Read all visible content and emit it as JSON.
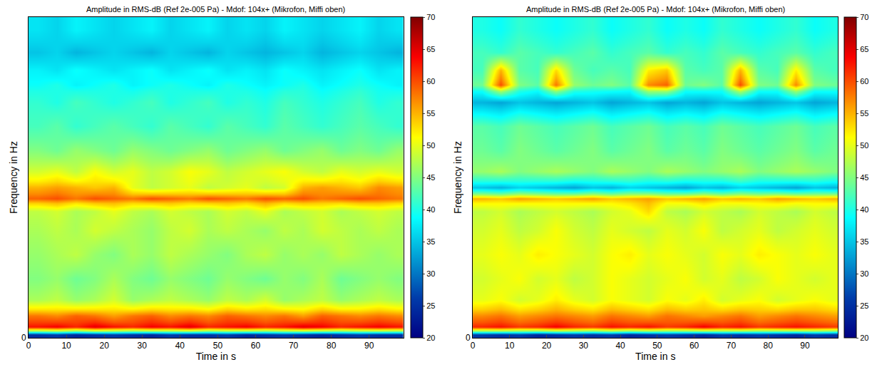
{
  "chart_data": [
    {
      "type": "heatmap",
      "title": "Amplitude in RMS-dB (Ref 2e-005 Pa) - Mdof: 104x+ (Mikrofon, Miffi oben)",
      "x_label": "Time in s",
      "y_label": "Frequency in Hz",
      "color": "Jet",
      "xlim": [
        0,
        99
      ],
      "xticks": [
        0,
        10,
        20,
        30,
        40,
        50,
        60,
        70,
        80,
        90
      ],
      "ylim": [
        0,
        100
      ],
      "yticks": [
        0
      ],
      "zlim": [
        20,
        70
      ],
      "zticks": [
        20,
        25,
        30,
        35,
        40,
        45,
        50,
        55,
        60,
        65,
        70
      ],
      "x_edges": [
        0,
        5,
        10,
        15,
        20,
        25,
        30,
        35,
        40,
        45,
        50,
        55,
        60,
        65,
        70,
        75,
        80,
        85,
        90,
        95,
        100
      ],
      "y_edges": [
        0,
        2,
        5,
        9,
        15,
        22,
        30,
        37,
        42,
        45,
        49,
        55,
        62,
        70,
        77,
        81,
        86,
        92,
        100
      ],
      "z": [
        [
          25,
          26,
          24,
          25,
          26,
          25,
          24,
          26,
          25,
          25,
          26,
          24,
          25,
          26,
          25,
          24,
          25,
          26,
          25,
          25
        ],
        [
          63,
          64,
          62,
          65,
          63,
          62,
          64,
          63,
          65,
          62,
          63,
          64,
          62,
          63,
          65,
          64,
          62,
          63,
          64,
          63
        ],
        [
          58,
          57,
          59,
          58,
          56,
          58,
          59,
          57,
          58,
          57,
          59,
          58,
          57,
          58,
          56,
          59,
          58,
          57,
          58,
          57
        ],
        [
          47,
          48,
          46,
          47,
          49,
          46,
          47,
          48,
          47,
          46,
          48,
          47,
          49,
          46,
          47,
          48,
          46,
          47,
          48,
          47
        ],
        [
          45,
          46,
          44,
          45,
          47,
          45,
          44,
          46,
          45,
          44,
          46,
          45,
          44,
          46,
          45,
          47,
          44,
          45,
          46,
          45
        ],
        [
          46,
          47,
          48,
          46,
          45,
          47,
          46,
          48,
          47,
          46,
          45,
          47,
          48,
          46,
          47,
          46,
          48,
          47,
          46,
          47
        ],
        [
          47,
          48,
          47,
          49,
          48,
          47,
          46,
          48,
          49,
          47,
          48,
          47,
          46,
          48,
          47,
          49,
          48,
          47,
          48,
          47
        ],
        [
          48,
          49,
          47,
          48,
          50,
          48,
          47,
          49,
          48,
          47,
          49,
          48,
          50,
          47,
          48,
          49,
          47,
          48,
          49,
          48
        ],
        [
          59,
          60,
          58,
          60,
          59,
          58,
          60,
          59,
          58,
          60,
          59,
          58,
          60,
          59,
          60,
          58,
          59,
          60,
          59,
          58
        ],
        [
          55,
          56,
          55,
          54,
          55,
          50,
          48,
          49,
          50,
          48,
          49,
          50,
          48,
          49,
          55,
          56,
          55,
          54,
          57,
          56
        ],
        [
          49,
          50,
          48,
          51,
          49,
          50,
          48,
          49,
          51,
          50,
          48,
          49,
          50,
          51,
          49,
          48,
          50,
          49,
          50,
          49
        ],
        [
          45,
          44,
          46,
          45,
          44,
          46,
          45,
          44,
          45,
          46,
          44,
          45,
          46,
          44,
          45,
          46,
          44,
          45,
          44,
          46
        ],
        [
          42,
          43,
          41,
          42,
          43,
          42,
          41,
          43,
          42,
          41,
          43,
          42,
          41,
          43,
          42,
          41,
          42,
          43,
          42,
          41
        ],
        [
          41,
          40,
          42,
          41,
          40,
          41,
          42,
          40,
          41,
          42,
          40,
          41,
          40,
          42,
          41,
          40,
          41,
          42,
          40,
          41
        ],
        [
          39,
          40,
          38,
          39,
          40,
          38,
          39,
          40,
          39,
          38,
          40,
          39,
          38,
          39,
          40,
          38,
          39,
          40,
          39,
          38
        ],
        [
          38,
          37,
          39,
          38,
          37,
          38,
          39,
          37,
          38,
          39,
          37,
          38,
          37,
          39,
          38,
          37,
          38,
          39,
          37,
          38
        ],
        [
          35,
          36,
          34,
          35,
          36,
          35,
          34,
          36,
          35,
          34,
          36,
          35,
          34,
          35,
          36,
          34,
          35,
          36,
          35,
          34
        ],
        [
          37,
          36,
          38,
          37,
          36,
          37,
          38,
          36,
          37,
          38,
          36,
          37,
          36,
          38,
          37,
          36,
          37,
          38,
          36,
          37
        ]
      ]
    },
    {
      "type": "heatmap",
      "title": "Amplitude in RMS-dB (Ref 2e-005 Pa) - Mdof: 104x+ (Mikrofon, Miffi oben)",
      "x_label": "Time in s",
      "y_label": "Frequency in Hz",
      "color": "Jet",
      "xlim": [
        0,
        99
      ],
      "xticks": [
        0,
        10,
        20,
        30,
        40,
        50,
        60,
        70,
        80,
        90
      ],
      "ylim": [
        0,
        100
      ],
      "yticks": [
        0
      ],
      "zlim": [
        20,
        70
      ],
      "zticks": [
        20,
        25,
        30,
        35,
        40,
        45,
        50,
        55,
        60,
        65,
        70
      ],
      "x_edges": [
        0,
        5,
        10,
        15,
        20,
        25,
        30,
        35,
        40,
        45,
        50,
        55,
        60,
        65,
        70,
        75,
        80,
        85,
        90,
        95,
        100
      ],
      "y_edges": [
        0,
        2,
        5,
        9,
        15,
        22,
        30,
        37,
        42,
        45,
        49,
        55,
        62,
        70,
        77,
        81,
        86,
        92,
        100
      ],
      "z": [
        [
          26,
          25,
          26,
          24,
          25,
          26,
          25,
          26,
          24,
          25,
          26,
          25,
          24,
          26,
          25,
          26,
          25,
          24,
          26,
          25
        ],
        [
          62,
          63,
          61,
          62,
          64,
          62,
          61,
          63,
          62,
          63,
          61,
          62,
          64,
          62,
          63,
          61,
          62,
          63,
          62,
          61
        ],
        [
          57,
          58,
          56,
          57,
          58,
          57,
          56,
          58,
          57,
          56,
          58,
          57,
          56,
          57,
          58,
          56,
          57,
          58,
          57,
          56
        ],
        [
          50,
          51,
          49,
          50,
          52,
          50,
          49,
          51,
          50,
          49,
          51,
          50,
          52,
          49,
          50,
          51,
          49,
          50,
          51,
          50
        ],
        [
          49,
          50,
          51,
          49,
          50,
          48,
          49,
          51,
          50,
          49,
          50,
          51,
          49,
          50,
          48,
          49,
          51,
          50,
          49,
          50
        ],
        [
          50,
          51,
          50,
          52,
          51,
          50,
          49,
          51,
          52,
          50,
          51,
          50,
          49,
          51,
          50,
          52,
          51,
          50,
          51,
          50
        ],
        [
          49,
          50,
          48,
          49,
          51,
          49,
          48,
          50,
          49,
          48,
          50,
          49,
          51,
          48,
          49,
          50,
          48,
          49,
          50,
          49
        ],
        [
          48,
          49,
          47,
          48,
          49,
          48,
          47,
          49,
          50,
          53,
          48,
          47,
          49,
          48,
          47,
          49,
          48,
          47,
          49,
          48
        ],
        [
          55,
          54,
          56,
          55,
          54,
          55,
          56,
          54,
          55,
          56,
          54,
          55,
          56,
          54,
          55,
          54,
          56,
          55,
          54,
          55
        ],
        [
          35,
          34,
          36,
          35,
          34,
          33,
          35,
          34,
          36,
          35,
          34,
          33,
          35,
          34,
          36,
          35,
          34,
          33,
          35,
          34
        ],
        [
          46,
          47,
          45,
          46,
          47,
          46,
          45,
          47,
          46,
          45,
          47,
          46,
          45,
          46,
          47,
          45,
          46,
          47,
          46,
          45
        ],
        [
          44,
          43,
          45,
          44,
          43,
          44,
          45,
          43,
          44,
          45,
          43,
          44,
          43,
          45,
          44,
          43,
          44,
          45,
          43,
          44
        ],
        [
          43,
          42,
          44,
          43,
          42,
          43,
          44,
          42,
          43,
          44,
          42,
          43,
          42,
          44,
          43,
          42,
          43,
          44,
          42,
          43
        ],
        [
          34,
          33,
          35,
          34,
          33,
          34,
          35,
          33,
          34,
          35,
          33,
          34,
          33,
          35,
          34,
          33,
          34,
          35,
          33,
          34
        ],
        [
          44,
          60,
          45,
          43,
          58,
          46,
          44,
          45,
          43,
          57,
          59,
          44,
          45,
          43,
          60,
          45,
          44,
          57,
          45,
          44
        ],
        [
          42,
          55,
          43,
          42,
          53,
          44,
          42,
          43,
          42,
          52,
          54,
          43,
          42,
          43,
          55,
          43,
          42,
          52,
          43,
          42
        ],
        [
          42,
          41,
          43,
          42,
          41,
          42,
          43,
          41,
          42,
          43,
          41,
          42,
          41,
          43,
          42,
          41,
          42,
          43,
          41,
          42
        ],
        [
          40,
          39,
          41,
          40,
          39,
          40,
          41,
          39,
          40,
          41,
          39,
          40,
          39,
          41,
          40,
          39,
          40,
          41,
          39,
          40
        ]
      ]
    }
  ]
}
